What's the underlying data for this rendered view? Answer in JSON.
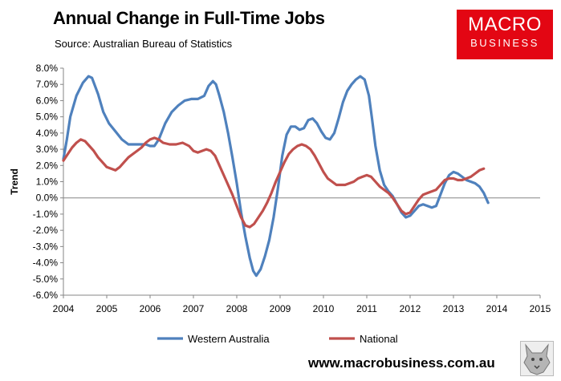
{
  "header": {
    "title": "Annual Change in Full-Time Jobs",
    "source": "Source: Australian Bureau of Statistics"
  },
  "brand": {
    "logo_line1": "MACRO",
    "logo_line2": "BUSINESS",
    "logo_color": "#e30613",
    "website": "www.macrobusiness.com.au",
    "mascot_icon": "wolf-icon"
  },
  "chart_data": {
    "type": "line",
    "title": "Annual Change in Full-Time Jobs",
    "xlabel": "",
    "ylabel": "Trend",
    "xlim": [
      2004,
      2015
    ],
    "ylim": [
      -6.0,
      8.0
    ],
    "x_ticks": [
      "2004",
      "2005",
      "2006",
      "2007",
      "2008",
      "2009",
      "2010",
      "2011",
      "2012",
      "2013",
      "2014",
      "2015"
    ],
    "y_ticks": [
      "8.0%",
      "7.0%",
      "6.0%",
      "5.0%",
      "4.0%",
      "3.0%",
      "2.0%",
      "1.0%",
      "0.0%",
      "-1.0%",
      "-2.0%",
      "-3.0%",
      "-4.0%",
      "-5.0%",
      "-6.0%"
    ],
    "grid": false,
    "legend_position": "bottom",
    "series": [
      {
        "name": "Western Australia",
        "color": "#4f81bd",
        "points": [
          [
            2004.0,
            2.4
          ],
          [
            2004.08,
            3.6
          ],
          [
            2004.16,
            5.0
          ],
          [
            2004.3,
            6.3
          ],
          [
            2004.45,
            7.1
          ],
          [
            2004.58,
            7.5
          ],
          [
            2004.66,
            7.4
          ],
          [
            2004.8,
            6.4
          ],
          [
            2004.92,
            5.3
          ],
          [
            2005.05,
            4.6
          ],
          [
            2005.2,
            4.1
          ],
          [
            2005.35,
            3.6
          ],
          [
            2005.5,
            3.3
          ],
          [
            2005.7,
            3.3
          ],
          [
            2005.9,
            3.3
          ],
          [
            2006.0,
            3.2
          ],
          [
            2006.1,
            3.2
          ],
          [
            2006.2,
            3.6
          ],
          [
            2006.35,
            4.6
          ],
          [
            2006.5,
            5.3
          ],
          [
            2006.65,
            5.7
          ],
          [
            2006.8,
            6.0
          ],
          [
            2006.95,
            6.1
          ],
          [
            2007.1,
            6.1
          ],
          [
            2007.25,
            6.3
          ],
          [
            2007.35,
            6.9
          ],
          [
            2007.45,
            7.2
          ],
          [
            2007.52,
            7.0
          ],
          [
            2007.6,
            6.3
          ],
          [
            2007.7,
            5.3
          ],
          [
            2007.8,
            4.0
          ],
          [
            2007.9,
            2.5
          ],
          [
            2008.0,
            0.9
          ],
          [
            2008.1,
            -0.9
          ],
          [
            2008.2,
            -2.4
          ],
          [
            2008.3,
            -3.7
          ],
          [
            2008.38,
            -4.5
          ],
          [
            2008.45,
            -4.8
          ],
          [
            2008.55,
            -4.4
          ],
          [
            2008.65,
            -3.6
          ],
          [
            2008.75,
            -2.6
          ],
          [
            2008.85,
            -1.2
          ],
          [
            2008.95,
            0.6
          ],
          [
            2009.05,
            2.6
          ],
          [
            2009.15,
            3.9
          ],
          [
            2009.25,
            4.4
          ],
          [
            2009.35,
            4.4
          ],
          [
            2009.45,
            4.2
          ],
          [
            2009.55,
            4.3
          ],
          [
            2009.65,
            4.8
          ],
          [
            2009.75,
            4.9
          ],
          [
            2009.85,
            4.6
          ],
          [
            2009.95,
            4.1
          ],
          [
            2010.05,
            3.7
          ],
          [
            2010.15,
            3.6
          ],
          [
            2010.25,
            4.0
          ],
          [
            2010.35,
            4.9
          ],
          [
            2010.45,
            5.9
          ],
          [
            2010.55,
            6.6
          ],
          [
            2010.65,
            7.0
          ],
          [
            2010.75,
            7.3
          ],
          [
            2010.85,
            7.5
          ],
          [
            2010.95,
            7.3
          ],
          [
            2011.05,
            6.3
          ],
          [
            2011.12,
            4.9
          ],
          [
            2011.2,
            3.2
          ],
          [
            2011.3,
            1.7
          ],
          [
            2011.4,
            0.8
          ],
          [
            2011.5,
            0.4
          ],
          [
            2011.6,
            0.1
          ],
          [
            2011.7,
            -0.4
          ],
          [
            2011.8,
            -0.9
          ],
          [
            2011.9,
            -1.2
          ],
          [
            2012.0,
            -1.1
          ],
          [
            2012.1,
            -0.8
          ],
          [
            2012.2,
            -0.5
          ],
          [
            2012.3,
            -0.4
          ],
          [
            2012.4,
            -0.5
          ],
          [
            2012.5,
            -0.6
          ],
          [
            2012.6,
            -0.5
          ],
          [
            2012.7,
            0.2
          ],
          [
            2012.8,
            0.9
          ],
          [
            2012.9,
            1.4
          ],
          [
            2013.0,
            1.6
          ],
          [
            2013.1,
            1.5
          ],
          [
            2013.2,
            1.3
          ],
          [
            2013.3,
            1.1
          ],
          [
            2013.4,
            1.0
          ],
          [
            2013.5,
            0.9
          ],
          [
            2013.6,
            0.7
          ],
          [
            2013.7,
            0.3
          ],
          [
            2013.8,
            -0.3
          ]
        ]
      },
      {
        "name": "National",
        "color": "#c0504d",
        "points": [
          [
            2004.0,
            2.3
          ],
          [
            2004.1,
            2.7
          ],
          [
            2004.2,
            3.1
          ],
          [
            2004.3,
            3.4
          ],
          [
            2004.4,
            3.6
          ],
          [
            2004.5,
            3.5
          ],
          [
            2004.6,
            3.2
          ],
          [
            2004.7,
            2.9
          ],
          [
            2004.8,
            2.5
          ],
          [
            2004.9,
            2.2
          ],
          [
            2005.0,
            1.9
          ],
          [
            2005.1,
            1.8
          ],
          [
            2005.2,
            1.7
          ],
          [
            2005.3,
            1.9
          ],
          [
            2005.4,
            2.2
          ],
          [
            2005.5,
            2.5
          ],
          [
            2005.6,
            2.7
          ],
          [
            2005.7,
            2.9
          ],
          [
            2005.8,
            3.1
          ],
          [
            2005.9,
            3.4
          ],
          [
            2006.0,
            3.6
          ],
          [
            2006.1,
            3.7
          ],
          [
            2006.2,
            3.6
          ],
          [
            2006.3,
            3.4
          ],
          [
            2006.45,
            3.3
          ],
          [
            2006.6,
            3.3
          ],
          [
            2006.75,
            3.4
          ],
          [
            2006.9,
            3.2
          ],
          [
            2007.0,
            2.9
          ],
          [
            2007.1,
            2.8
          ],
          [
            2007.2,
            2.9
          ],
          [
            2007.3,
            3.0
          ],
          [
            2007.4,
            2.9
          ],
          [
            2007.5,
            2.6
          ],
          [
            2007.6,
            2.0
          ],
          [
            2007.7,
            1.4
          ],
          [
            2007.8,
            0.8
          ],
          [
            2007.9,
            0.2
          ],
          [
            2008.0,
            -0.5
          ],
          [
            2008.1,
            -1.2
          ],
          [
            2008.2,
            -1.7
          ],
          [
            2008.3,
            -1.8
          ],
          [
            2008.4,
            -1.6
          ],
          [
            2008.5,
            -1.2
          ],
          [
            2008.6,
            -0.8
          ],
          [
            2008.7,
            -0.3
          ],
          [
            2008.8,
            0.3
          ],
          [
            2008.9,
            1.0
          ],
          [
            2009.0,
            1.6
          ],
          [
            2009.1,
            2.2
          ],
          [
            2009.2,
            2.7
          ],
          [
            2009.3,
            3.0
          ],
          [
            2009.4,
            3.2
          ],
          [
            2009.5,
            3.3
          ],
          [
            2009.6,
            3.2
          ],
          [
            2009.7,
            3.0
          ],
          [
            2009.8,
            2.6
          ],
          [
            2009.9,
            2.1
          ],
          [
            2010.0,
            1.6
          ],
          [
            2010.1,
            1.2
          ],
          [
            2010.2,
            1.0
          ],
          [
            2010.3,
            0.8
          ],
          [
            2010.4,
            0.8
          ],
          [
            2010.5,
            0.8
          ],
          [
            2010.6,
            0.9
          ],
          [
            2010.7,
            1.0
          ],
          [
            2010.8,
            1.2
          ],
          [
            2010.9,
            1.3
          ],
          [
            2011.0,
            1.4
          ],
          [
            2011.1,
            1.3
          ],
          [
            2011.2,
            1.0
          ],
          [
            2011.3,
            0.7
          ],
          [
            2011.4,
            0.5
          ],
          [
            2011.5,
            0.3
          ],
          [
            2011.6,
            0.0
          ],
          [
            2011.7,
            -0.4
          ],
          [
            2011.8,
            -0.8
          ],
          [
            2011.9,
            -1.0
          ],
          [
            2012.0,
            -0.9
          ],
          [
            2012.1,
            -0.5
          ],
          [
            2012.2,
            -0.1
          ],
          [
            2012.3,
            0.2
          ],
          [
            2012.4,
            0.3
          ],
          [
            2012.5,
            0.4
          ],
          [
            2012.6,
            0.5
          ],
          [
            2012.7,
            0.8
          ],
          [
            2012.8,
            1.1
          ],
          [
            2012.9,
            1.2
          ],
          [
            2013.0,
            1.2
          ],
          [
            2013.1,
            1.1
          ],
          [
            2013.2,
            1.1
          ],
          [
            2013.3,
            1.2
          ],
          [
            2013.4,
            1.3
          ],
          [
            2013.5,
            1.5
          ],
          [
            2013.6,
            1.7
          ],
          [
            2013.7,
            1.8
          ]
        ]
      }
    ]
  }
}
